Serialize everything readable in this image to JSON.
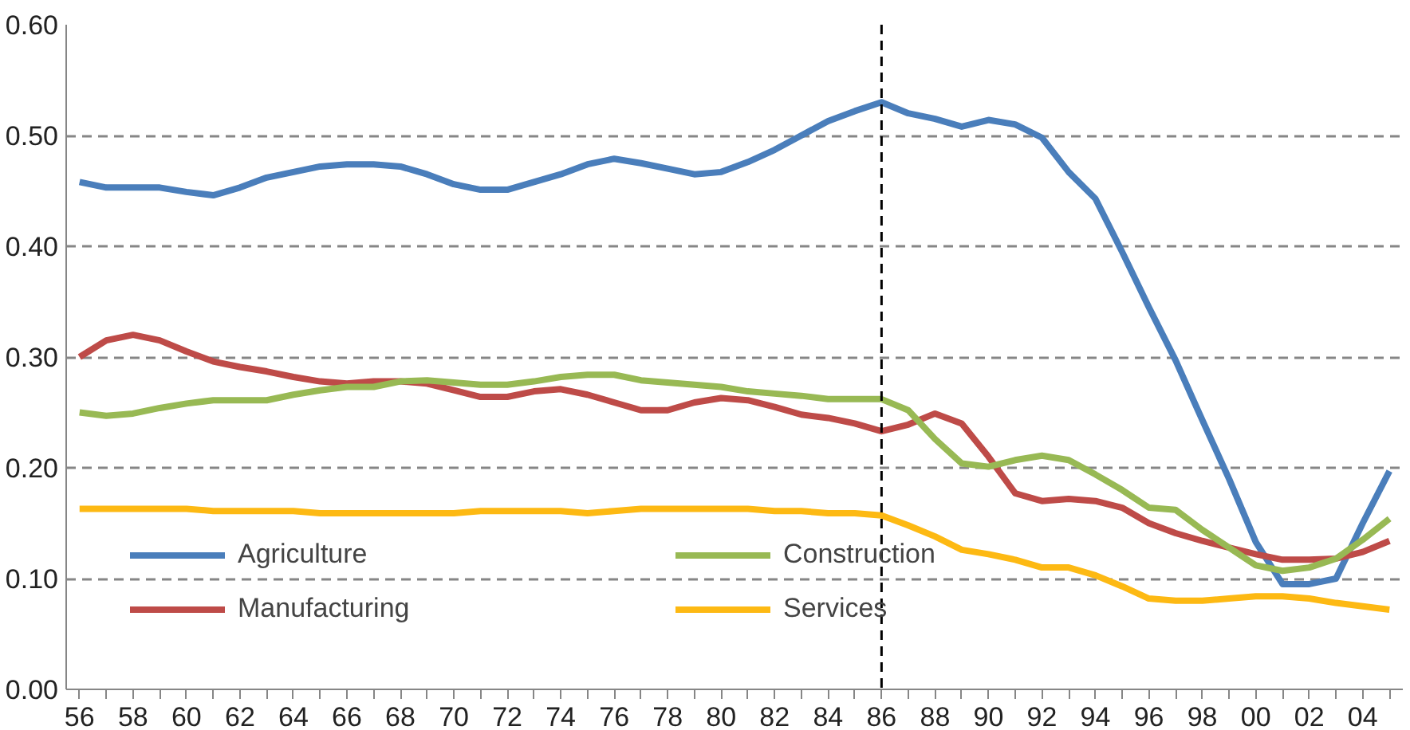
{
  "chart_data": {
    "type": "line",
    "categories": [
      "56",
      null,
      "58",
      null,
      "60",
      null,
      "62",
      null,
      "64",
      null,
      "66",
      null,
      "68",
      null,
      "70",
      null,
      "72",
      null,
      "74",
      null,
      "76",
      null,
      "78",
      null,
      "80",
      null,
      "82",
      null,
      "84",
      null,
      "86",
      null,
      "88",
      null,
      "90",
      null,
      "92",
      null,
      "94",
      null,
      "96",
      null,
      "98",
      null,
      "00",
      null,
      "02",
      null,
      "04",
      null
    ],
    "series": [
      {
        "name": "Agriculture",
        "color": "#4a7ebb",
        "values": [
          0.458,
          0.453,
          0.453,
          0.453,
          0.449,
          0.446,
          0.453,
          0.462,
          0.467,
          0.472,
          0.474,
          0.474,
          0.472,
          0.465,
          0.456,
          0.451,
          0.451,
          0.458,
          0.465,
          0.474,
          0.479,
          0.475,
          0.47,
          0.465,
          0.467,
          0.476,
          0.487,
          0.5,
          0.513,
          0.522,
          0.53,
          0.52,
          0.515,
          0.508,
          0.514,
          0.51,
          0.498,
          0.467,
          0.443,
          0.395,
          0.345,
          0.297,
          0.243,
          0.19,
          0.133,
          0.095,
          0.095,
          0.1,
          0.15,
          0.197
        ]
      },
      {
        "name": "Manufacturing",
        "color": "#be4b48",
        "values": [
          0.3,
          0.315,
          0.32,
          0.315,
          0.305,
          0.296,
          0.291,
          0.287,
          0.282,
          0.278,
          0.276,
          0.278,
          0.278,
          0.276,
          0.27,
          0.264,
          0.264,
          0.269,
          0.271,
          0.266,
          0.259,
          0.252,
          0.252,
          0.259,
          0.263,
          0.261,
          0.255,
          0.248,
          0.245,
          0.24,
          0.233,
          0.239,
          0.249,
          0.24,
          0.21,
          0.177,
          0.17,
          0.172,
          0.17,
          0.164,
          0.15,
          0.141,
          0.134,
          0.128,
          0.122,
          0.117,
          0.117,
          0.118,
          0.124,
          0.134
        ]
      },
      {
        "name": "Construction",
        "color": "#98b954",
        "values": [
          0.25,
          0.247,
          0.249,
          0.254,
          0.258,
          0.261,
          0.261,
          0.261,
          0.266,
          0.27,
          0.273,
          0.273,
          0.278,
          0.279,
          0.277,
          0.275,
          0.275,
          0.278,
          0.282,
          0.284,
          0.284,
          0.279,
          0.277,
          0.275,
          0.273,
          0.269,
          0.267,
          0.265,
          0.262,
          0.262,
          0.262,
          0.252,
          0.226,
          0.204,
          0.201,
          0.207,
          0.211,
          0.207,
          0.194,
          0.18,
          0.164,
          0.162,
          0.144,
          0.128,
          0.112,
          0.107,
          0.11,
          0.118,
          0.135,
          0.154
        ]
      },
      {
        "name": "Services",
        "color": "#fdb913",
        "values": [
          0.163,
          0.163,
          0.163,
          0.163,
          0.163,
          0.161,
          0.161,
          0.161,
          0.161,
          0.159,
          0.159,
          0.159,
          0.159,
          0.159,
          0.159,
          0.161,
          0.161,
          0.161,
          0.161,
          0.159,
          0.161,
          0.163,
          0.163,
          0.163,
          0.163,
          0.163,
          0.161,
          0.161,
          0.159,
          0.159,
          0.157,
          0.148,
          0.138,
          0.126,
          0.122,
          0.117,
          0.11,
          0.11,
          0.103,
          0.093,
          0.082,
          0.08,
          0.08,
          0.082,
          0.084,
          0.084,
          0.082,
          0.078,
          0.075,
          0.072
        ]
      }
    ],
    "ylim": [
      0,
      0.6
    ],
    "yticks": [
      {
        "value": 0,
        "label": "0.00"
      },
      {
        "value": 0.1,
        "label": "0.10"
      },
      {
        "value": 0.2,
        "label": "0.20"
      },
      {
        "value": 0.3,
        "label": "0.30"
      },
      {
        "value": 0.4,
        "label": "0.40"
      },
      {
        "value": 0.5,
        "label": "0.50"
      },
      {
        "value": 0.6,
        "label": "0.60"
      }
    ],
    "grid": "y",
    "legend": "bottom left",
    "marker": "none",
    "line_style": "solid",
    "ref_lines": [
      {
        "axis": "x",
        "value": "86",
        "color": "#000000",
        "line_style": "dashed"
      }
    ]
  }
}
